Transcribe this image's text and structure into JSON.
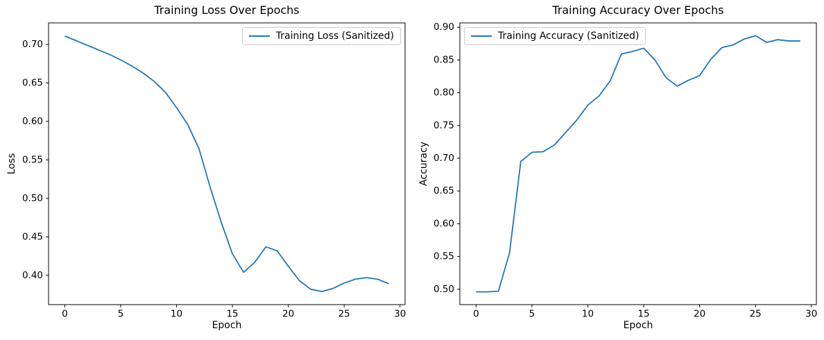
{
  "figure": {
    "background": "#ffffff"
  },
  "chart_data": [
    {
      "type": "line",
      "title": "Training Loss Over Epochs",
      "xlabel": "Epoch",
      "ylabel": "Loss",
      "grid": false,
      "line_color": "#1f77b4",
      "legend": {
        "label": "Training Loss (Sanitized)",
        "position": "upper-right"
      },
      "xlim": [
        -1.45,
        30.45
      ],
      "ylim": [
        0.362,
        0.728
      ],
      "x_ticks": [
        0,
        5,
        10,
        15,
        20,
        25,
        30
      ],
      "x_tick_labels": [
        "0",
        "5",
        "10",
        "15",
        "20",
        "25",
        "30"
      ],
      "y_ticks": [
        0.4,
        0.45,
        0.5,
        0.55,
        0.6,
        0.65,
        0.7
      ],
      "y_tick_labels": [
        "0.40",
        "0.45",
        "0.50",
        "0.55",
        "0.60",
        "0.65",
        "0.70"
      ],
      "series": [
        {
          "name": "Training Loss (Sanitized)",
          "x": [
            0,
            1,
            2,
            3,
            4,
            5,
            6,
            7,
            8,
            9,
            10,
            11,
            12,
            13,
            14,
            15,
            16,
            17,
            18,
            19,
            20,
            21,
            22,
            23,
            24,
            25,
            26,
            27,
            28,
            29
          ],
          "values": [
            0.711,
            0.705,
            0.699,
            0.693,
            0.687,
            0.68,
            0.672,
            0.663,
            0.652,
            0.638,
            0.618,
            0.596,
            0.565,
            0.515,
            0.469,
            0.428,
            0.404,
            0.417,
            0.437,
            0.432,
            0.412,
            0.393,
            0.382,
            0.379,
            0.383,
            0.39,
            0.395,
            0.397,
            0.395,
            0.389
          ]
        }
      ]
    },
    {
      "type": "line",
      "title": "Training Accuracy Over Epochs",
      "xlabel": "Epoch",
      "ylabel": "Accuracy",
      "grid": false,
      "line_color": "#1f77b4",
      "legend": {
        "label": "Training Accuracy (Sanitized)",
        "position": "upper-left"
      },
      "xlim": [
        -1.45,
        30.45
      ],
      "ylim": [
        0.4765,
        0.9066
      ],
      "x_ticks": [
        0,
        5,
        10,
        15,
        20,
        25,
        30
      ],
      "x_tick_labels": [
        "0",
        "5",
        "10",
        "15",
        "20",
        "25",
        "30"
      ],
      "y_ticks": [
        0.5,
        0.55,
        0.6,
        0.65,
        0.7,
        0.75,
        0.8,
        0.85,
        0.9
      ],
      "y_tick_labels": [
        "0.50",
        "0.55",
        "0.60",
        "0.65",
        "0.70",
        "0.75",
        "0.80",
        "0.85",
        "0.90"
      ],
      "series": [
        {
          "name": "Training Accuracy (Sanitized)",
          "x": [
            0,
            1,
            2,
            3,
            4,
            5,
            6,
            7,
            8,
            9,
            10,
            11,
            12,
            13,
            14,
            15,
            16,
            17,
            18,
            19,
            20,
            21,
            22,
            23,
            24,
            25,
            26,
            27,
            28,
            29
          ],
          "values": [
            0.496,
            0.496,
            0.497,
            0.556,
            0.695,
            0.709,
            0.71,
            0.72,
            0.739,
            0.758,
            0.781,
            0.795,
            0.818,
            0.859,
            0.863,
            0.868,
            0.85,
            0.823,
            0.81,
            0.819,
            0.826,
            0.851,
            0.869,
            0.873,
            0.882,
            0.887,
            0.877,
            0.881,
            0.879,
            0.879
          ]
        }
      ]
    }
  ]
}
